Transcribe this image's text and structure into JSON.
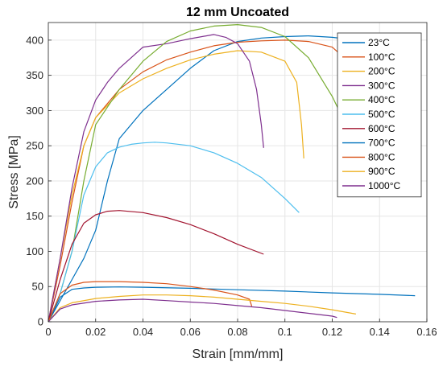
{
  "chart_data": {
    "type": "line",
    "title": "12 mm Uncoated",
    "xlabel": "Strain [mm/mm]",
    "ylabel": "Stress [MPa]",
    "xlim": [
      0,
      0.16
    ],
    "ylim": [
      0,
      425
    ],
    "xticks": [
      0,
      0.02,
      0.04,
      0.06,
      0.08,
      0.1,
      0.12,
      0.14,
      0.16
    ],
    "xtick_labels": [
      "0",
      "0.02",
      "0.04",
      "0.06",
      "0.08",
      "0.1",
      "0.12",
      "0.14",
      "0.16"
    ],
    "yticks": [
      0,
      50,
      100,
      150,
      200,
      250,
      300,
      350,
      400
    ],
    "ytick_labels": [
      "0",
      "50",
      "100",
      "150",
      "200",
      "250",
      "300",
      "350",
      "400"
    ],
    "grid": true,
    "legend_position": "top-right",
    "series": [
      {
        "name": "23°C",
        "color": "#0072BD",
        "x": [
          0,
          0.005,
          0.01,
          0.015,
          0.02,
          0.025,
          0.03,
          0.04,
          0.05,
          0.06,
          0.07,
          0.08,
          0.09,
          0.1,
          0.11,
          0.12,
          0.13,
          0.14,
          0.145,
          0.15,
          0.153,
          0.155,
          0.156
        ],
        "y": [
          0,
          30,
          60,
          90,
          130,
          200,
          260,
          300,
          330,
          360,
          385,
          398,
          403,
          405,
          406,
          404,
          400,
          385,
          365,
          330,
          300,
          270,
          245
        ]
      },
      {
        "name": "100°C",
        "color": "#D95319",
        "x": [
          0,
          0.005,
          0.01,
          0.015,
          0.02,
          0.03,
          0.04,
          0.05,
          0.06,
          0.07,
          0.08,
          0.09,
          0.1,
          0.11,
          0.12,
          0.125,
          0.13,
          0.132,
          0.133
        ],
        "y": [
          0,
          80,
          170,
          250,
          290,
          330,
          355,
          372,
          383,
          392,
          397,
          399,
          400,
          398,
          390,
          375,
          340,
          280,
          235
        ]
      },
      {
        "name": "200°C",
        "color": "#EDB120",
        "x": [
          0,
          0.005,
          0.01,
          0.015,
          0.02,
          0.03,
          0.04,
          0.05,
          0.06,
          0.07,
          0.08,
          0.09,
          0.1,
          0.105,
          0.107,
          0.108
        ],
        "y": [
          0,
          90,
          180,
          250,
          290,
          325,
          345,
          360,
          372,
          380,
          385,
          383,
          370,
          340,
          280,
          232
        ]
      },
      {
        "name": "300°C",
        "color": "#7E2F8E",
        "x": [
          0,
          0.005,
          0.01,
          0.015,
          0.02,
          0.025,
          0.03,
          0.035,
          0.04,
          0.05,
          0.06,
          0.07,
          0.075,
          0.08,
          0.085,
          0.088,
          0.09,
          0.091
        ],
        "y": [
          0,
          90,
          190,
          270,
          315,
          340,
          360,
          375,
          390,
          395,
          402,
          408,
          404,
          395,
          370,
          330,
          280,
          247
        ]
      },
      {
        "name": "400°C",
        "color": "#77AC30",
        "x": [
          0,
          0.005,
          0.01,
          0.015,
          0.02,
          0.03,
          0.04,
          0.05,
          0.06,
          0.07,
          0.08,
          0.09,
          0.1,
          0.11,
          0.12,
          0.125,
          0.127
        ],
        "y": [
          0,
          40,
          100,
          200,
          280,
          330,
          370,
          398,
          413,
          420,
          422,
          418,
          405,
          375,
          320,
          285,
          260
        ]
      },
      {
        "name": "500°C",
        "color": "#4DBEEE",
        "x": [
          0,
          0.005,
          0.01,
          0.015,
          0.02,
          0.025,
          0.03,
          0.035,
          0.04,
          0.045,
          0.05,
          0.06,
          0.07,
          0.08,
          0.09,
          0.1,
          0.106
        ],
        "y": [
          0,
          40,
          100,
          180,
          220,
          240,
          248,
          252,
          254,
          255,
          254,
          250,
          240,
          225,
          205,
          175,
          155
        ]
      },
      {
        "name": "600°C",
        "color": "#A2142F",
        "x": [
          0,
          0.005,
          0.01,
          0.015,
          0.02,
          0.025,
          0.03,
          0.04,
          0.05,
          0.06,
          0.07,
          0.08,
          0.091
        ],
        "y": [
          0,
          60,
          110,
          140,
          152,
          157,
          158,
          155,
          148,
          138,
          125,
          110,
          96
        ]
      },
      {
        "name": "700°C",
        "color": "#0072BD",
        "x": [
          0,
          0.005,
          0.01,
          0.015,
          0.02,
          0.03,
          0.04,
          0.06,
          0.08,
          0.1,
          0.12,
          0.14,
          0.155
        ],
        "y": [
          0,
          35,
          46,
          48,
          49,
          49.5,
          49,
          47.5,
          45.5,
          43.5,
          41,
          39,
          37
        ]
      },
      {
        "name": "800°C",
        "color": "#D95319",
        "x": [
          0,
          0.005,
          0.01,
          0.015,
          0.02,
          0.03,
          0.04,
          0.05,
          0.06,
          0.07,
          0.08,
          0.085,
          0.086
        ],
        "y": [
          0,
          40,
          52,
          56,
          57,
          57,
          56,
          54,
          50,
          45,
          38,
          32,
          22
        ]
      },
      {
        "name": "900°C",
        "color": "#EDB120",
        "x": [
          0,
          0.005,
          0.01,
          0.02,
          0.03,
          0.04,
          0.05,
          0.06,
          0.07,
          0.08,
          0.09,
          0.1,
          0.11,
          0.12,
          0.13
        ],
        "y": [
          0,
          20,
          27,
          33,
          36,
          38,
          38,
          37,
          35,
          32,
          29,
          26,
          22,
          17,
          11
        ]
      },
      {
        "name": "1000°C",
        "color": "#7E2F8E",
        "x": [
          0,
          0.005,
          0.01,
          0.02,
          0.03,
          0.04,
          0.05,
          0.06,
          0.07,
          0.08,
          0.09,
          0.1,
          0.11,
          0.12,
          0.122
        ],
        "y": [
          0,
          18,
          24,
          29,
          31,
          32,
          30,
          28,
          26,
          23,
          20,
          16,
          12,
          8,
          6
        ]
      }
    ]
  }
}
